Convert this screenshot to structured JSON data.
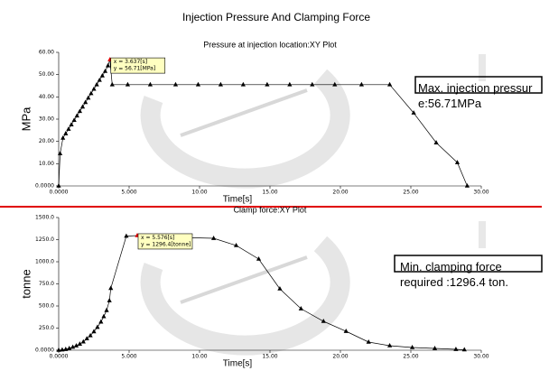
{
  "heading": "Injection Pressure And Clamping Force",
  "chart_data": [
    {
      "type": "line",
      "title": "Pressure at injection location:XY Plot",
      "xlabel": "Time[s]",
      "ylabel": "MPa",
      "color": "#000000",
      "x": [
        0,
        0.1,
        0.3,
        0.5,
        0.7,
        0.9,
        1.1,
        1.3,
        1.5,
        1.7,
        1.9,
        2.1,
        2.3,
        2.5,
        2.7,
        2.9,
        3.1,
        3.3,
        3.5,
        3.637,
        3.8,
        4.9,
        6.5,
        8.3,
        9.9,
        11.5,
        13.1,
        14.8,
        16.4,
        18.0,
        19.6,
        21.5,
        23.5,
        25.2,
        26.8,
        28.3,
        29.0
      ],
      "values": [
        0,
        14.5,
        21.5,
        23.5,
        25.5,
        27.5,
        29.5,
        31.5,
        33.5,
        35.5,
        37.5,
        39.5,
        41.5,
        43.5,
        45.5,
        47.5,
        49.5,
        51.5,
        54,
        56.71,
        45.5,
        45.5,
        45.5,
        45.5,
        45.5,
        45.5,
        45.5,
        45.5,
        45.5,
        45.5,
        45.5,
        45.5,
        45.5,
        32.8,
        19.4,
        10.5,
        0
      ],
      "xlim": [
        0,
        30
      ],
      "ylim": [
        0,
        60
      ],
      "xticks": [
        {
          "value": 0,
          "label": "0.0000"
        },
        {
          "value": 5,
          "label": "5.000"
        },
        {
          "value": 10,
          "label": "10.00"
        },
        {
          "value": 15,
          "label": "15.00"
        },
        {
          "value": 20,
          "label": "20.00"
        },
        {
          "value": 25,
          "label": "25.00"
        },
        {
          "value": 30,
          "label": "30.00"
        }
      ],
      "yticks": [
        {
          "value": 0,
          "label": "0.0000"
        },
        {
          "value": 10,
          "label": "10.00"
        },
        {
          "value": 20,
          "label": "20.00"
        },
        {
          "value": 30,
          "label": "30.00"
        },
        {
          "value": 40,
          "label": "40.00"
        },
        {
          "value": 50,
          "label": "50.00"
        },
        {
          "value": 60,
          "label": "60.00"
        }
      ],
      "tooltip": [
        "x = 3.637[s]",
        "y = 56.71[MPa]"
      ],
      "note": "Max. injection pressure:56.71MPa"
    },
    {
      "type": "line",
      "title": "Clamp force:XY Plot",
      "xlabel": "Time[s]",
      "ylabel": "tonne",
      "color": "#000000",
      "x": [
        0,
        0.25,
        0.5,
        0.75,
        1,
        1.25,
        1.5,
        1.75,
        2,
        2.25,
        2.5,
        2.75,
        3,
        3.2,
        3.4,
        3.6,
        3.7,
        4.8,
        5.576,
        6.2,
        11.0,
        12.6,
        14.2,
        15.7,
        17.2,
        18.8,
        20.4,
        22.0,
        23.5,
        25.1,
        26.7,
        28.2,
        28.8
      ],
      "values": [
        0,
        4,
        10,
        20,
        35,
        50,
        70,
        95,
        130,
        165,
        210,
        260,
        320,
        380,
        450,
        560,
        700,
        1290,
        1296.4,
        1285,
        1265,
        1184,
        1031,
        694,
        469,
        327,
        214,
        92,
        51,
        31,
        20,
        10,
        5
      ],
      "xlim": [
        0,
        30
      ],
      "ylim": [
        0,
        1500
      ],
      "xticks": [
        {
          "value": 0,
          "label": "0.0000"
        },
        {
          "value": 5,
          "label": "5.000"
        },
        {
          "value": 10,
          "label": "10.00"
        },
        {
          "value": 15,
          "label": "15.00"
        },
        {
          "value": 20,
          "label": "20.00"
        },
        {
          "value": 25,
          "label": "25.00"
        },
        {
          "value": 30,
          "label": "30.00"
        }
      ],
      "yticks": [
        {
          "value": 0,
          "label": "0.0000"
        },
        {
          "value": 250,
          "label": "250.0"
        },
        {
          "value": 500,
          "label": "500.0"
        },
        {
          "value": 750,
          "label": "750.0"
        },
        {
          "value": 1000,
          "label": "1000.0"
        },
        {
          "value": 1250,
          "label": "1250.0"
        },
        {
          "value": 1500,
          "label": "1500.0"
        }
      ],
      "tooltip": [
        "x = 5.576[s]",
        "y = 1296.4[tonne]"
      ],
      "note": "Min. clamping force required :1296.4 ton."
    }
  ]
}
